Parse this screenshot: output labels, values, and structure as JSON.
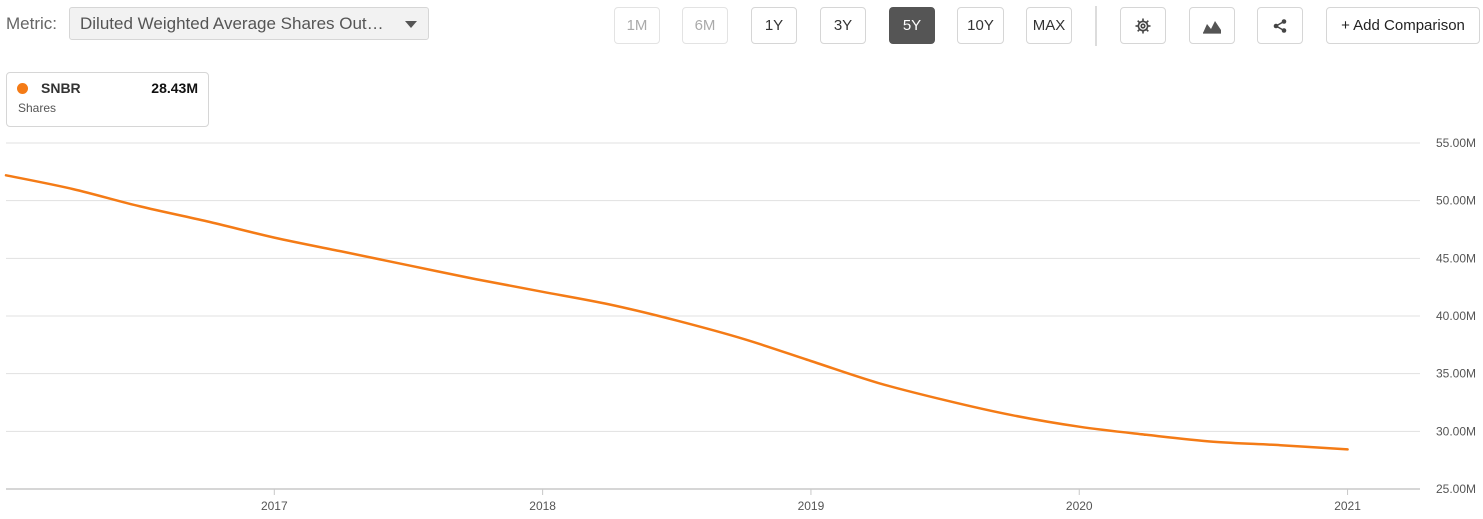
{
  "toolbar": {
    "metric_label": "Metric:",
    "metric_value": "Diluted Weighted Average Shares Out…",
    "ranges": [
      "1M",
      "6M",
      "1Y",
      "3Y",
      "5Y",
      "10Y",
      "MAX"
    ],
    "active_range": "5Y",
    "disabled_ranges": [
      "1M",
      "6M"
    ],
    "add_comparison_label": "+ Add Comparison"
  },
  "legend": {
    "ticker": "SNBR",
    "value": "28.43M",
    "unit": "Shares",
    "color": "#f47b16"
  },
  "chart_data": {
    "type": "line",
    "title": "",
    "xlabel": "",
    "ylabel": "",
    "x_tick_labels": [
      "2017",
      "2018",
      "2019",
      "2020",
      "2021"
    ],
    "y_tick_labels": [
      "25.00M",
      "30.00M",
      "35.00M",
      "40.00M",
      "45.00M",
      "50.00M",
      "55.00M"
    ],
    "ylim": [
      25,
      55
    ],
    "xlim": [
      2016.0,
      2021.27
    ],
    "grid": true,
    "series": [
      {
        "name": "SNBR",
        "color": "#f47b16",
        "x": [
          2016.0,
          2016.25,
          2016.5,
          2016.75,
          2017.0,
          2017.25,
          2017.5,
          2017.75,
          2018.0,
          2018.25,
          2018.5,
          2018.75,
          2019.0,
          2019.25,
          2019.5,
          2019.75,
          2020.0,
          2020.25,
          2020.5,
          2020.75,
          2021.0
        ],
        "values": [
          52.2,
          51.0,
          49.5,
          48.2,
          46.8,
          45.6,
          44.4,
          43.2,
          42.1,
          41.0,
          39.6,
          38.0,
          36.1,
          34.2,
          32.7,
          31.4,
          30.4,
          29.7,
          29.1,
          28.8,
          28.43
        ]
      }
    ]
  }
}
